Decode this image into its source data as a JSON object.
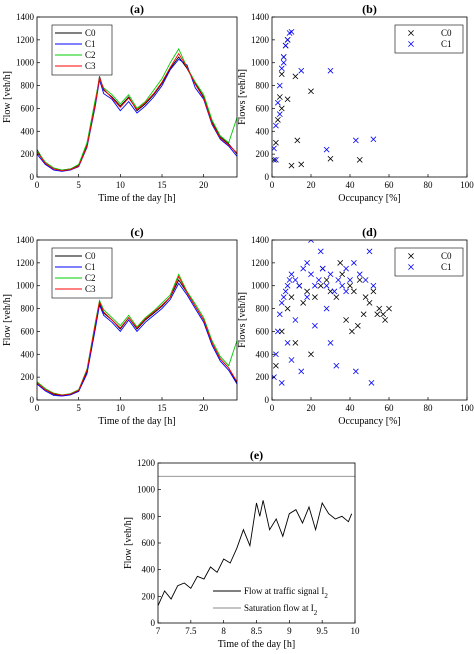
{
  "chart_data": [
    {
      "panel": "(a)",
      "type": "line",
      "title": "(a)",
      "xlabel": "Time of the day [h]",
      "ylabel": "Flow [veh/h]",
      "xlim": [
        0,
        24
      ],
      "ylim": [
        0,
        1400
      ],
      "xticks": [
        0,
        5,
        10,
        15,
        20
      ],
      "yticks": [
        0,
        200,
        400,
        600,
        800,
        1000,
        1200,
        1400
      ],
      "legend_position": "top-left",
      "series": [
        {
          "name": "C0",
          "color": "#000000",
          "x": [
            0,
            1,
            2,
            3,
            4,
            5,
            6,
            7,
            7.5,
            8,
            9,
            10,
            11,
            12,
            13,
            14,
            15,
            16,
            17,
            18,
            19,
            20,
            21,
            22,
            23,
            24
          ],
          "y": [
            240,
            120,
            70,
            60,
            70,
            100,
            280,
            650,
            880,
            760,
            700,
            620,
            700,
            580,
            640,
            720,
            820,
            950,
            1050,
            950,
            820,
            700,
            480,
            350,
            290,
            200
          ]
        },
        {
          "name": "C1",
          "color": "#0000ff",
          "x": [
            0,
            1,
            2,
            3,
            4,
            5,
            6,
            7,
            7.5,
            8,
            9,
            10,
            11,
            12,
            13,
            14,
            15,
            16,
            17,
            18,
            19,
            20,
            21,
            22,
            23,
            24
          ],
          "y": [
            200,
            110,
            60,
            50,
            60,
            90,
            260,
            620,
            850,
            730,
            680,
            580,
            660,
            560,
            620,
            700,
            800,
            940,
            1030,
            980,
            780,
            680,
            460,
            330,
            270,
            180
          ]
        },
        {
          "name": "C2",
          "color": "#00cc00",
          "x": [
            0,
            1,
            2,
            3,
            4,
            5,
            6,
            7,
            7.5,
            8,
            9,
            10,
            11,
            12,
            13,
            14,
            15,
            16,
            17,
            18,
            19,
            20,
            21,
            22,
            23,
            24
          ],
          "y": [
            230,
            130,
            80,
            60,
            70,
            110,
            300,
            680,
            860,
            780,
            720,
            640,
            720,
            600,
            660,
            760,
            860,
            1000,
            1120,
            960,
            830,
            720,
            500,
            360,
            300,
            520
          ]
        },
        {
          "name": "C3",
          "color": "#ff0000",
          "x": [
            0,
            1,
            2,
            3,
            4,
            5,
            6,
            7,
            7.5,
            8,
            9,
            10,
            11,
            12,
            13,
            14,
            15,
            16,
            17,
            18,
            19,
            20,
            21,
            22,
            23,
            24
          ],
          "y": [
            220,
            120,
            70,
            55,
            65,
            95,
            270,
            640,
            870,
            770,
            690,
            610,
            690,
            590,
            650,
            730,
            830,
            960,
            1080,
            960,
            810,
            690,
            470,
            340,
            280,
            210
          ]
        }
      ]
    },
    {
      "panel": "(b)",
      "type": "scatter",
      "title": "(b)",
      "xlabel": "Occupancy [%]",
      "ylabel": "Flows [veh/h]",
      "xlim": [
        0,
        100
      ],
      "ylim": [
        0,
        1400
      ],
      "xticks": [
        0,
        20,
        40,
        60,
        80,
        100
      ],
      "yticks": [
        0,
        200,
        400,
        600,
        800,
        1000,
        1200,
        1400
      ],
      "legend_position": "top-right",
      "series": [
        {
          "name": "C0",
          "color": "#000000",
          "marker": "x",
          "x": [
            1,
            2,
            3,
            4,
            5,
            6,
            7,
            8,
            12,
            13,
            15,
            20,
            30,
            45,
            10,
            5,
            8
          ],
          "y": [
            150,
            300,
            500,
            700,
            900,
            1050,
            1150,
            1200,
            880,
            320,
            110,
            750,
            160,
            150,
            100,
            600,
            680
          ]
        },
        {
          "name": "C1",
          "color": "#0000ff",
          "marker": "x",
          "x": [
            1,
            2,
            3,
            4,
            5,
            6,
            7,
            8,
            9,
            10,
            15,
            30,
            43,
            52,
            28,
            2,
            4,
            6
          ],
          "y": [
            250,
            450,
            650,
            800,
            950,
            1050,
            1150,
            1200,
            1260,
            1270,
            930,
            930,
            320,
            330,
            240,
            150,
            550,
            1000
          ]
        }
      ]
    },
    {
      "panel": "(c)",
      "type": "line",
      "title": "(c)",
      "xlabel": "Time of the day [h]",
      "ylabel": "Flow [veh/h]",
      "xlim": [
        0,
        24
      ],
      "ylim": [
        0,
        1400
      ],
      "xticks": [
        0,
        5,
        10,
        15,
        20
      ],
      "yticks": [
        0,
        200,
        400,
        600,
        800,
        1000,
        1200,
        1400
      ],
      "legend_position": "top-right",
      "series": [
        {
          "name": "C0",
          "color": "#000000",
          "x": [
            0,
            1,
            2,
            3,
            4,
            5,
            6,
            7,
            7.5,
            8,
            9,
            10,
            11,
            12,
            13,
            14,
            15,
            16,
            17,
            18,
            19,
            20,
            21,
            22,
            23,
            24
          ],
          "y": [
            150,
            90,
            50,
            40,
            50,
            80,
            250,
            650,
            850,
            760,
            700,
            620,
            720,
            620,
            700,
            760,
            820,
            900,
            1050,
            940,
            820,
            700,
            500,
            360,
            280,
            150
          ]
        },
        {
          "name": "C1",
          "color": "#0000ff",
          "x": [
            0,
            1,
            2,
            3,
            4,
            5,
            6,
            7,
            7.5,
            8,
            9,
            10,
            11,
            12,
            13,
            14,
            15,
            16,
            17,
            18,
            19,
            20,
            21,
            22,
            23,
            24
          ],
          "y": [
            140,
            80,
            40,
            35,
            45,
            75,
            230,
            620,
            830,
            740,
            680,
            600,
            700,
            600,
            680,
            740,
            800,
            880,
            1020,
            920,
            800,
            680,
            480,
            340,
            260,
            140
          ]
        },
        {
          "name": "C2",
          "color": "#00cc00",
          "x": [
            0,
            1,
            2,
            3,
            4,
            5,
            6,
            7,
            7.5,
            8,
            9,
            10,
            11,
            12,
            13,
            14,
            15,
            16,
            17,
            18,
            19,
            20,
            21,
            22,
            23,
            24
          ],
          "y": [
            160,
            100,
            60,
            45,
            55,
            90,
            270,
            680,
            870,
            790,
            720,
            650,
            740,
            640,
            720,
            780,
            850,
            920,
            1100,
            950,
            840,
            720,
            520,
            380,
            300,
            520
          ]
        },
        {
          "name": "C3",
          "color": "#ff0000",
          "x": [
            0,
            1,
            2,
            3,
            4,
            5,
            6,
            7,
            7.5,
            8,
            9,
            10,
            11,
            12,
            13,
            14,
            15,
            16,
            17,
            18,
            19,
            20,
            21,
            22,
            23,
            24
          ],
          "y": [
            150,
            90,
            55,
            42,
            52,
            85,
            260,
            660,
            860,
            770,
            700,
            630,
            720,
            630,
            710,
            770,
            830,
            900,
            1080,
            940,
            820,
            700,
            500,
            360,
            280,
            160
          ]
        }
      ]
    },
    {
      "panel": "(d)",
      "type": "scatter",
      "title": "(d)",
      "xlabel": "Occupancy [%]",
      "ylabel": "Flows [veh/h]",
      "xlim": [
        0,
        100
      ],
      "ylim": [
        0,
        1400
      ],
      "xticks": [
        0,
        20,
        40,
        60,
        80,
        100
      ],
      "yticks": [
        0,
        200,
        400,
        600,
        800,
        1000,
        1200,
        1400
      ],
      "legend_position": "top-right",
      "series": [
        {
          "name": "C0",
          "color": "#000000",
          "marker": "x",
          "x": [
            2,
            5,
            8,
            10,
            14,
            18,
            22,
            25,
            28,
            30,
            33,
            36,
            40,
            42,
            45,
            48,
            50,
            52,
            55,
            57,
            58,
            60,
            38,
            44,
            47,
            12,
            16,
            20,
            26,
            35,
            41,
            54
          ],
          "y": [
            300,
            600,
            800,
            900,
            1000,
            950,
            900,
            1000,
            1050,
            950,
            900,
            1100,
            1000,
            950,
            1050,
            900,
            850,
            950,
            800,
            750,
            700,
            800,
            700,
            650,
            750,
            500,
            850,
            400,
            1150,
            1200,
            600,
            750
          ]
        },
        {
          "name": "C1",
          "color": "#0000ff",
          "marker": "x",
          "x": [
            1,
            2,
            3,
            4,
            5,
            6,
            7,
            8,
            9,
            10,
            12,
            14,
            16,
            18,
            20,
            22,
            24,
            26,
            28,
            30,
            32,
            34,
            36,
            38,
            40,
            42,
            45,
            48,
            50,
            52,
            15,
            20,
            25,
            33,
            43,
            51,
            5,
            8,
            12,
            18,
            28,
            38,
            10,
            22,
            30
          ],
          "y": [
            200,
            400,
            600,
            750,
            850,
            900,
            950,
            1000,
            1050,
            1100,
            1050,
            1000,
            1150,
            1200,
            1100,
            1000,
            1050,
            1150,
            1000,
            1100,
            950,
            1050,
            1000,
            1150,
            1050,
            1200,
            1100,
            1050,
            1300,
            1000,
            250,
            1400,
            1300,
            300,
            250,
            150,
            150,
            500,
            700,
            900,
            800,
            950,
            350,
            650,
            500
          ]
        }
      ]
    },
    {
      "panel": "(e)",
      "type": "line",
      "title": "(e)",
      "xlabel": "Time of the day [h]",
      "ylabel": "Flow [veh/h]",
      "xlim": [
        7,
        10
      ],
      "ylim": [
        0,
        1200
      ],
      "xticks": [
        7,
        7.5,
        8,
        8.5,
        9,
        9.5,
        10
      ],
      "yticks": [
        0,
        200,
        400,
        600,
        800,
        1000,
        1200
      ],
      "legend_position": "bottom-center",
      "series": [
        {
          "name": "Flow at traffic signal I",
          "subscript": "2",
          "color": "#000000",
          "x": [
            7,
            7.1,
            7.2,
            7.3,
            7.4,
            7.5,
            7.6,
            7.7,
            7.8,
            7.9,
            8,
            8.1,
            8.2,
            8.3,
            8.4,
            8.5,
            8.55,
            8.6,
            8.7,
            8.8,
            8.9,
            9,
            9.1,
            9.2,
            9.3,
            9.4,
            9.5,
            9.6,
            9.7,
            9.8,
            9.9,
            9.95
          ],
          "y": [
            130,
            240,
            180,
            280,
            300,
            260,
            350,
            330,
            420,
            380,
            480,
            450,
            560,
            700,
            580,
            900,
            800,
            920,
            700,
            780,
            650,
            820,
            850,
            750,
            870,
            700,
            900,
            820,
            780,
            800,
            760,
            820
          ]
        },
        {
          "name": "Saturation flow at I",
          "subscript": "2",
          "color": "#888888",
          "x": [
            7,
            10
          ],
          "y": [
            1100,
            1100
          ]
        }
      ]
    }
  ]
}
